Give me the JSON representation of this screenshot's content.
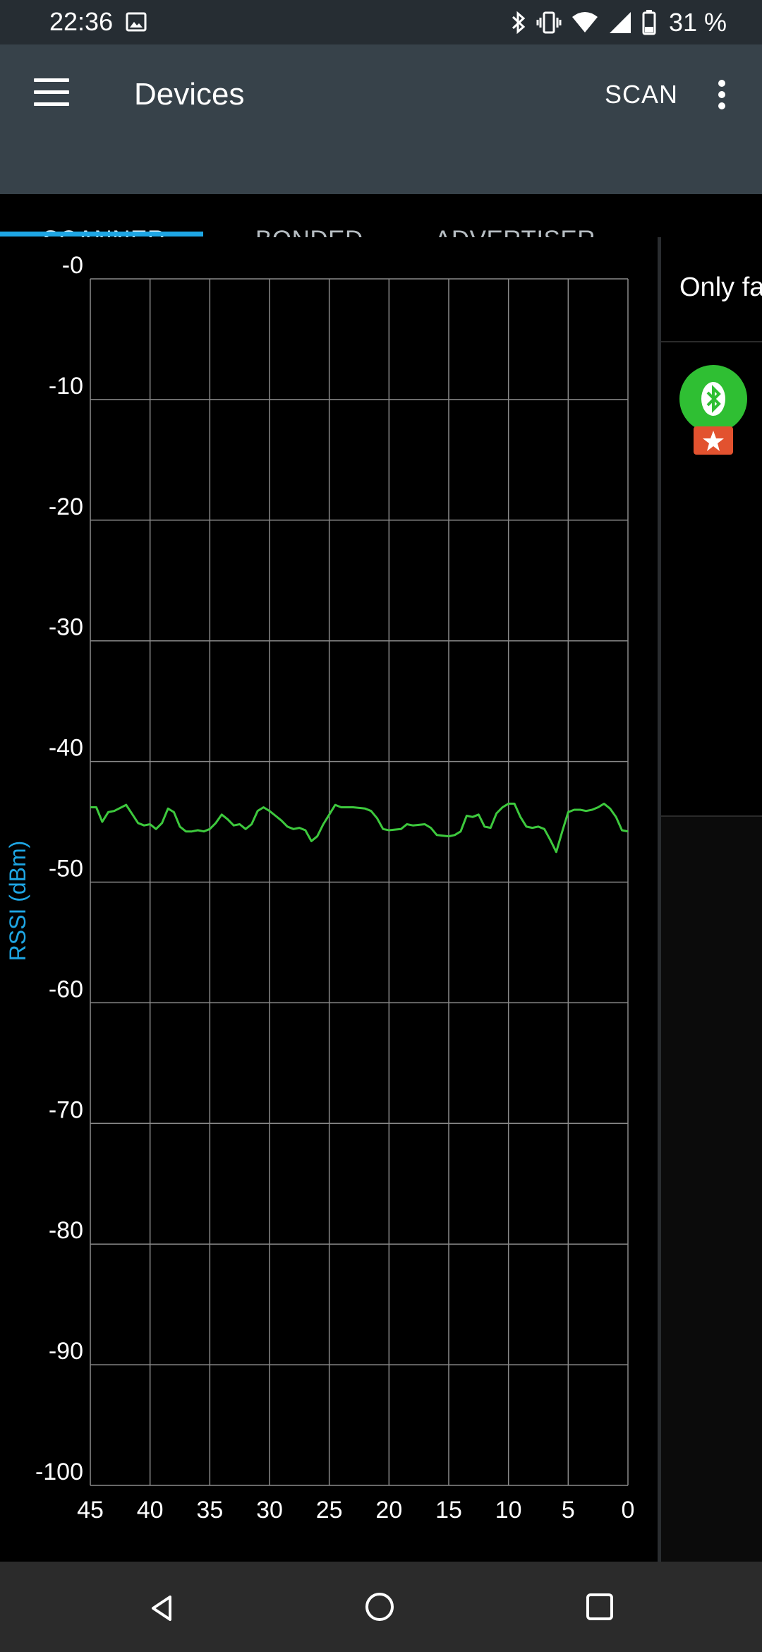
{
  "status_bar": {
    "time": "22:36",
    "battery_text": "31 %",
    "icons": [
      "image-icon",
      "bluetooth-icon",
      "vibrate-icon",
      "wifi-icon",
      "signal-icon",
      "battery-icon"
    ]
  },
  "appbar": {
    "title": "Devices",
    "scan_label": "SCAN"
  },
  "tabs": [
    {
      "label": "SCANNER",
      "selected": true
    },
    {
      "label": "BONDED",
      "selected": false
    },
    {
      "label": "ADVERTISER",
      "selected": false
    }
  ],
  "right_panel": {
    "only_favorites_text": "Only fa"
  },
  "colors": {
    "accent": "#1ea6e4",
    "series": "#3dc93d",
    "toolbar": "#37424a",
    "status_bar": "#262d33"
  },
  "chart_data": {
    "type": "line",
    "ylabel": "RSSI (dBm)",
    "xlabel": "",
    "xlim": [
      45,
      0
    ],
    "ylim": [
      -100,
      0
    ],
    "x_ticks": [
      45,
      40,
      35,
      30,
      25,
      20,
      15,
      10,
      5,
      0
    ],
    "x_tick_labels": [
      "45",
      "40",
      "35",
      "30",
      "25",
      "20",
      "15",
      "10",
      "5",
      "0"
    ],
    "y_ticks": [
      0,
      -10,
      -20,
      -30,
      -40,
      -50,
      -60,
      -70,
      -80,
      -90,
      -100
    ],
    "y_tick_labels": [
      "-0",
      "-10",
      "-20",
      "-30",
      "-40",
      "-50",
      "-60",
      "-70",
      "-80",
      "-90",
      "-100"
    ],
    "grid": true,
    "series": [
      {
        "x": [
          45,
          44.5,
          44,
          43.5,
          43,
          42,
          41,
          40.5,
          40,
          39.5,
          39,
          38.5,
          38,
          37.5,
          37,
          36.5,
          36,
          35.5,
          35,
          34.5,
          34,
          33.5,
          33,
          32.5,
          32,
          31.5,
          31,
          30.5,
          30,
          29.5,
          29,
          28.5,
          28,
          27.5,
          27,
          26.5,
          26,
          25.5,
          25,
          24.5,
          24,
          23,
          22,
          21.5,
          21,
          20.5,
          20,
          19,
          18.5,
          18,
          17,
          16.5,
          16,
          15,
          14.5,
          14,
          13.5,
          13,
          12.5,
          12,
          11.5,
          11,
          10.5,
          10,
          9.5,
          9,
          8.5,
          8,
          7.5,
          7,
          6.5,
          6,
          5.5,
          5,
          4.5,
          4,
          3.5,
          3,
          2.5,
          2,
          1.5,
          1,
          0.5,
          0
        ],
        "y": [
          -43.8,
          -43.8,
          -45.0,
          -44.2,
          -44.1,
          -43.6,
          -45.1,
          -45.3,
          -45.2,
          -45.6,
          -45.1,
          -43.9,
          -44.2,
          -45.4,
          -45.8,
          -45.8,
          -45.7,
          -45.8,
          -45.6,
          -45.1,
          -44.4,
          -44.8,
          -45.3,
          -45.2,
          -45.6,
          -45.2,
          -44.1,
          -43.8,
          -44.1,
          -44.5,
          -44.9,
          -45.4,
          -45.6,
          -45.5,
          -45.7,
          -46.6,
          -46.2,
          -45.2,
          -44.4,
          -43.6,
          -43.8,
          -43.8,
          -43.9,
          -44.1,
          -44.7,
          -45.6,
          -45.7,
          -45.6,
          -45.2,
          -45.3,
          -45.2,
          -45.5,
          -46.1,
          -46.2,
          -46.1,
          -45.8,
          -44.5,
          -44.6,
          -44.4,
          -45.4,
          -45.5,
          -44.3,
          -43.8,
          -43.5,
          -43.5,
          -44.6,
          -45.4,
          -45.5,
          -45.4,
          -45.6,
          -46.5,
          -47.5,
          -45.8,
          -44.2,
          -44.0,
          -44.0,
          -44.1,
          -44.0,
          -43.8,
          -43.5,
          -43.9,
          -44.6,
          -45.7,
          -45.8
        ]
      }
    ]
  }
}
